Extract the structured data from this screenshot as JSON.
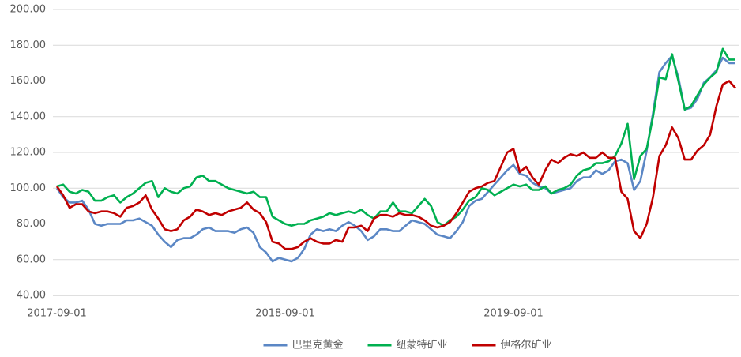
{
  "chart_data": {
    "type": "line",
    "categories": [
      "2017-09-01",
      null,
      null,
      null,
      null,
      null,
      null,
      null,
      null,
      null,
      null,
      null,
      null,
      null,
      null,
      null,
      null,
      null,
      null,
      null,
      null,
      null,
      null,
      null,
      null,
      null,
      null,
      null,
      null,
      null,
      null,
      null,
      null,
      null,
      null,
      null,
      "2018-09-01",
      null,
      null,
      null,
      null,
      null,
      null,
      null,
      null,
      null,
      null,
      null,
      null,
      null,
      null,
      null,
      null,
      null,
      null,
      null,
      null,
      null,
      null,
      null,
      null,
      null,
      null,
      null,
      null,
      null,
      null,
      null,
      null,
      null,
      null,
      null,
      "2019-09-01",
      null,
      null,
      null,
      null,
      null,
      null,
      null,
      null,
      null,
      null,
      null,
      null,
      null,
      null,
      null,
      null,
      null,
      null,
      null,
      null,
      null,
      null,
      null,
      null,
      null,
      null,
      null,
      null,
      null,
      null,
      null,
      null,
      null,
      null,
      null
    ],
    "series": [
      {
        "name": "巴里克黄金",
        "color": "#5b87c5",
        "values": [
          100,
          95,
          92,
          92,
          93,
          88,
          80,
          79,
          80,
          80,
          80,
          82,
          82,
          83,
          81,
          79,
          74,
          70,
          67,
          71,
          72,
          72,
          74,
          77,
          78,
          76,
          76,
          76,
          75,
          77,
          78,
          75,
          67,
          64,
          59,
          61,
          60,
          59,
          61,
          66,
          74,
          77,
          76,
          77,
          76,
          79,
          81,
          79,
          76,
          71,
          73,
          77,
          77,
          76,
          76,
          79,
          82,
          81,
          80,
          77,
          74,
          73,
          72,
          76,
          81,
          90,
          93,
          94,
          98,
          102,
          106,
          110,
          113,
          108,
          107,
          103,
          101,
          100,
          97,
          98,
          99,
          100,
          104,
          106,
          106,
          110,
          108,
          110,
          115,
          116,
          114,
          99,
          104,
          121,
          142,
          165,
          170,
          174,
          162,
          144,
          145,
          150,
          159,
          162,
          166,
          173,
          170,
          170
        ]
      },
      {
        "name": "纽蒙特矿业",
        "color": "#00b050",
        "values": [
          101,
          102,
          98,
          97,
          99,
          98,
          93,
          93,
          95,
          96,
          92,
          95,
          97,
          100,
          103,
          104,
          95,
          100,
          98,
          97,
          100,
          101,
          106,
          107,
          104,
          104,
          102,
          100,
          99,
          98,
          97,
          98,
          95,
          95,
          84,
          82,
          80,
          79,
          80,
          80,
          82,
          83,
          84,
          86,
          85,
          86,
          87,
          86,
          88,
          85,
          83,
          87,
          87,
          92,
          87,
          87,
          86,
          90,
          94,
          90,
          81,
          79,
          82,
          84,
          88,
          93,
          95,
          100,
          99,
          96,
          98,
          100,
          102,
          101,
          102,
          99,
          99,
          101,
          97,
          99,
          100,
          102,
          107,
          110,
          111,
          114,
          114,
          115,
          118,
          125,
          136,
          105,
          118,
          122,
          140,
          162,
          161,
          175,
          160,
          144,
          146,
          152,
          158,
          162,
          165,
          178,
          172,
          172
        ]
      },
      {
        "name": "伊格尔矿业",
        "color": "#c00000",
        "values": [
          101,
          96,
          89,
          91,
          91,
          87,
          86,
          87,
          87,
          86,
          84,
          89,
          90,
          92,
          96,
          88,
          83,
          77,
          76,
          77,
          82,
          84,
          88,
          87,
          85,
          86,
          85,
          87,
          88,
          89,
          92,
          88,
          86,
          81,
          70,
          69,
          66,
          66,
          67,
          70,
          72,
          70,
          69,
          69,
          71,
          70,
          78,
          78,
          79,
          76,
          83,
          85,
          85,
          84,
          86,
          85,
          85,
          84,
          82,
          79,
          78,
          79,
          81,
          86,
          92,
          98,
          100,
          101,
          103,
          104,
          112,
          120,
          122,
          109,
          112,
          106,
          102,
          110,
          116,
          114,
          117,
          119,
          118,
          120,
          117,
          117,
          120,
          117,
          117,
          98,
          94,
          76,
          72,
          80,
          95,
          118,
          124,
          134,
          128,
          116,
          116,
          121,
          124,
          130,
          146,
          158,
          160,
          156
        ]
      }
    ],
    "ylim": [
      40,
      200
    ],
    "yticks": [
      {
        "value": 40,
        "label": "40.00"
      },
      {
        "value": 60,
        "label": "60.00"
      },
      {
        "value": 80,
        "label": "80.00"
      },
      {
        "value": 100,
        "label": "100.00"
      },
      {
        "value": 120,
        "label": "120.00"
      },
      {
        "value": 140,
        "label": "140.00"
      },
      {
        "value": 160,
        "label": "160.00"
      },
      {
        "value": 180,
        "label": "180.00"
      },
      {
        "value": 200,
        "label": "200.00"
      }
    ],
    "grid": true,
    "legend": "bottom"
  }
}
